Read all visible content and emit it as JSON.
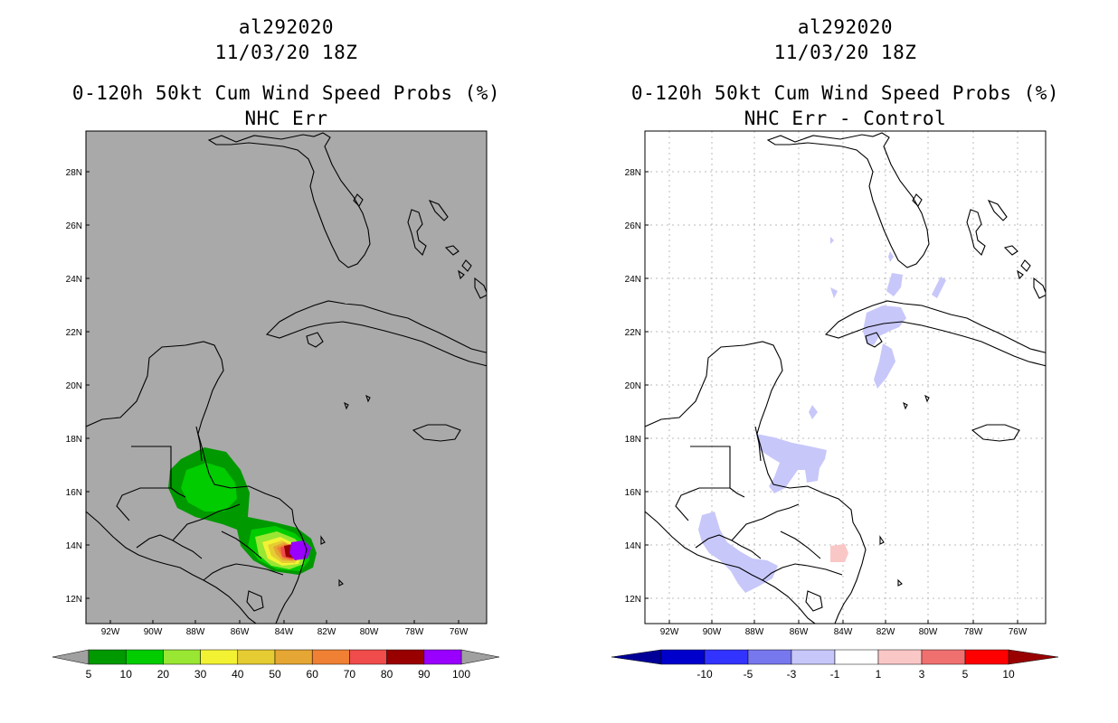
{
  "left_panel": {
    "storm_id": "al292020",
    "datetime": "11/03/20 18Z",
    "product": "0-120h 50kt Cum Wind Speed Probs (%)",
    "subtitle": "NHC Err",
    "background_color": "#a9a9a9",
    "lat_labels": [
      "28N",
      "26N",
      "24N",
      "22N",
      "20N",
      "18N",
      "16N",
      "14N",
      "12N"
    ],
    "lon_labels": [
      "92W",
      "90W",
      "88W",
      "86W",
      "84W",
      "82W",
      "80W",
      "78W",
      "76W"
    ],
    "colorbar": {
      "labels": [
        "5",
        "10",
        "20",
        "30",
        "40",
        "50",
        "60",
        "70",
        "80",
        "90",
        "100"
      ],
      "colors": [
        "#009900",
        "#00cc00",
        "#99e633",
        "#f2f233",
        "#e6cc33",
        "#e6a633",
        "#f08033",
        "#f04c4c",
        "#990000",
        "#9900ff"
      ],
      "end_color": "#a0a0a0"
    }
  },
  "right_panel": {
    "storm_id": "al292020",
    "datetime": "11/03/20 18Z",
    "product": "0-120h 50kt Cum Wind Speed Probs (%)",
    "subtitle": "NHC Err - Control",
    "background_color": "#ffffff",
    "lat_labels": [
      "28N",
      "26N",
      "24N",
      "22N",
      "20N",
      "18N",
      "16N",
      "14N",
      "12N"
    ],
    "lon_labels": [
      "92W",
      "90W",
      "88W",
      "86W",
      "84W",
      "82W",
      "80W",
      "78W",
      "76W"
    ],
    "colorbar": {
      "labels": [
        "-10",
        "-5",
        "-3",
        "-1",
        "1",
        "3",
        "5",
        "10"
      ],
      "colors": [
        "#0000cc",
        "#3333ff",
        "#7777ee",
        "#c7c7fa",
        "#ffffff",
        "#fac7c7",
        "#f07070",
        "#ff0000"
      ],
      "low_end_color": "#000099",
      "high_end_color": "#990000"
    }
  }
}
